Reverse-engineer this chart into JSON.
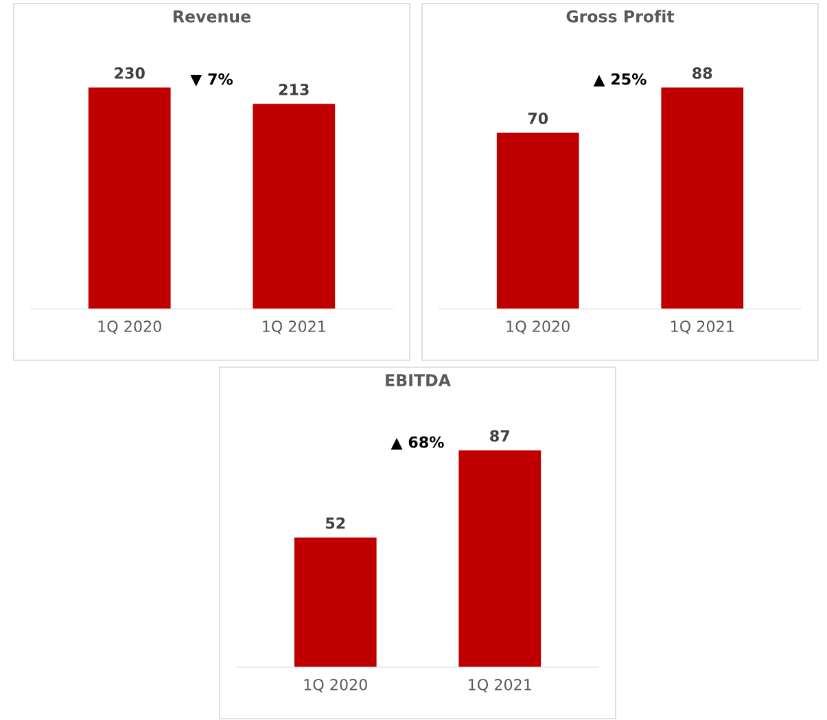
{
  "chart_data": [
    {
      "type": "bar",
      "title": "Revenue",
      "categories": [
        "1Q 2020",
        "1Q 2021"
      ],
      "values": [
        230,
        213
      ],
      "color": "#c00000",
      "data_labels": true,
      "annotations": [
        "▼ 7%"
      ]
    },
    {
      "type": "bar",
      "title": "Gross Profit",
      "categories": [
        "1Q 2020",
        "1Q 2021"
      ],
      "values": [
        70,
        88
      ],
      "color": "#c00000",
      "data_labels": true,
      "annotations": [
        "▲ 25%"
      ]
    },
    {
      "type": "bar",
      "title": "EBITDA",
      "categories": [
        "1Q 2020",
        "1Q 2021"
      ],
      "values": [
        52,
        87
      ],
      "color": "#c00000",
      "data_labels": true,
      "annotations": [
        "▲ 68%"
      ]
    }
  ]
}
